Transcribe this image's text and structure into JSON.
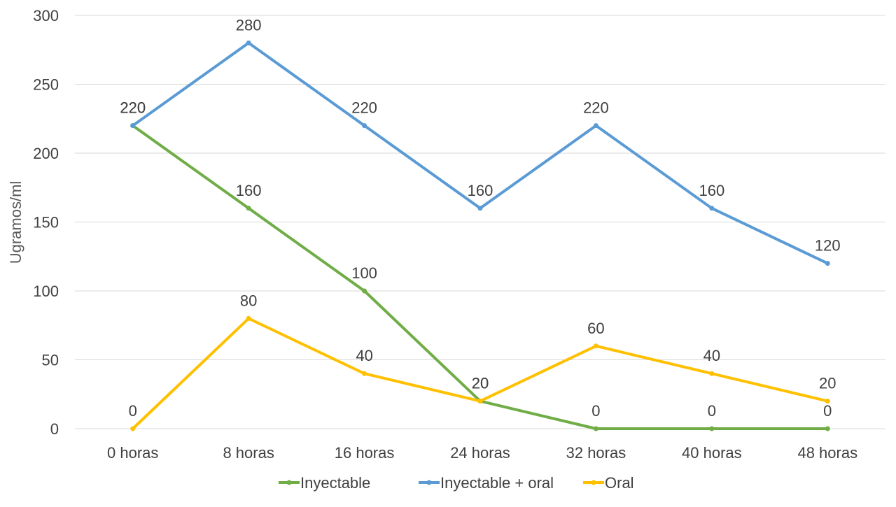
{
  "chart_data": {
    "type": "line",
    "title": "",
    "xlabel": "",
    "ylabel": "Ugramos/ml",
    "ylim": [
      0,
      300
    ],
    "yticks": [
      0,
      50,
      100,
      150,
      200,
      250,
      300
    ],
    "grid": true,
    "legend_position": "bottom",
    "categories": [
      "0 horas",
      "8 horas",
      "16 horas",
      "24 horas",
      "32 horas",
      "40 horas",
      "48 horas"
    ],
    "series": [
      {
        "name": "Inyectable",
        "color": "#70ad47",
        "values": [
          220,
          160,
          100,
          20,
          0,
          0,
          0
        ]
      },
      {
        "name": "Inyectable + oral",
        "color": "#5b9bd5",
        "values": [
          220,
          280,
          220,
          160,
          220,
          160,
          120
        ]
      },
      {
        "name": "Oral",
        "color": "#ffc000",
        "values": [
          0,
          80,
          40,
          20,
          60,
          40,
          20
        ]
      }
    ]
  }
}
